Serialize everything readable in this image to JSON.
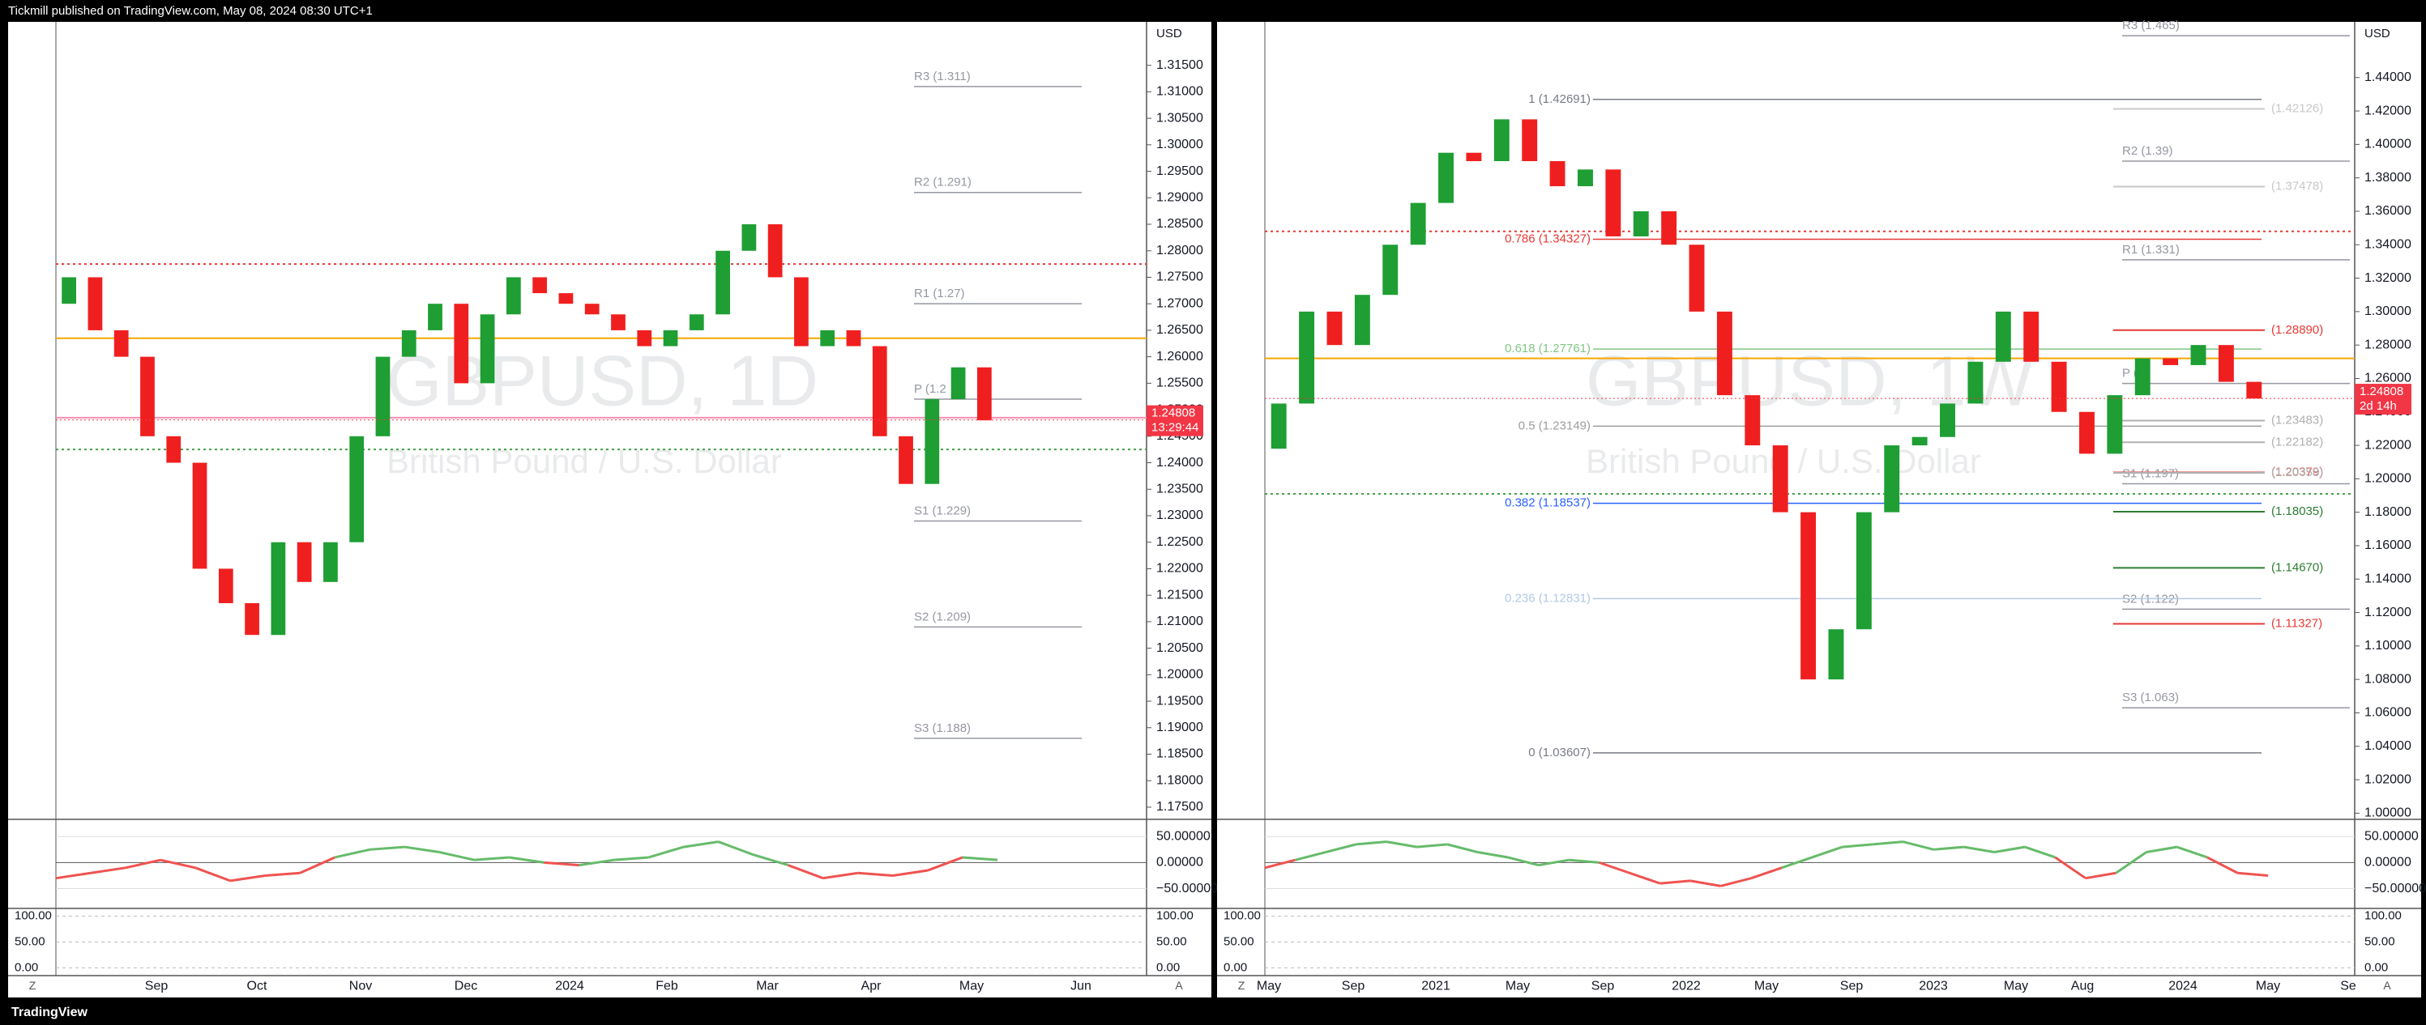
{
  "header": "Tickmill published on TradingView.com, May 08, 2024 08:30 UTC+1",
  "footer": "TradingView",
  "chart_data": [
    {
      "type": "candlestick",
      "title": "GBPUSD, 1D",
      "subtitle": "British Pound / U.S. Dollar",
      "currency": "USD",
      "up_color": "#1e9e33",
      "down_color": "#f01f1f",
      "values": [
        1.27,
        1.275,
        1.265,
        1.26,
        1.245,
        1.24,
        1.22,
        1.2135,
        1.2075,
        1.225,
        1.2175,
        1.225,
        1.245,
        1.26,
        1.265,
        1.27,
        1.255,
        1.268,
        1.275,
        1.272,
        1.27,
        1.268,
        1.265,
        1.262,
        1.265,
        1.268,
        1.28,
        1.285,
        1.275,
        1.262,
        1.265,
        1.262,
        1.245,
        1.236,
        1.252,
        1.258,
        1.248
      ],
      "ylim": [
        1.1727,
        1.3232
      ],
      "yticks": [
        {
          "value": 1.175,
          "label": "1.17500"
        },
        {
          "value": 1.18,
          "label": "1.18000"
        },
        {
          "value": 1.185,
          "label": "1.18500"
        },
        {
          "value": 1.19,
          "label": "1.19000"
        },
        {
          "value": 1.195,
          "label": "1.19500"
        },
        {
          "value": 1.2,
          "label": "1.20000"
        },
        {
          "value": 1.205,
          "label": "1.20500"
        },
        {
          "value": 1.21,
          "label": "1.21000"
        },
        {
          "value": 1.215,
          "label": "1.21500"
        },
        {
          "value": 1.22,
          "label": "1.22000"
        },
        {
          "value": 1.225,
          "label": "1.22500"
        },
        {
          "value": 1.23,
          "label": "1.23000"
        },
        {
          "value": 1.235,
          "label": "1.23500"
        },
        {
          "value": 1.24,
          "label": "1.24000"
        },
        {
          "value": 1.245,
          "label": "1.24500"
        },
        {
          "value": 1.25,
          "label": "1.25000"
        },
        {
          "value": 1.255,
          "label": "1.25500"
        },
        {
          "value": 1.26,
          "label": "1.26000"
        },
        {
          "value": 1.265,
          "label": "1.26500"
        },
        {
          "value": 1.27,
          "label": "1.27000"
        },
        {
          "value": 1.275,
          "label": "1.27500"
        },
        {
          "value": 1.28,
          "label": "1.28000"
        },
        {
          "value": 1.285,
          "label": "1.28500"
        },
        {
          "value": 1.29,
          "label": "1.29000"
        },
        {
          "value": 1.295,
          "label": "1.29500"
        },
        {
          "value": 1.3,
          "label": "1.30000"
        },
        {
          "value": 1.305,
          "label": "1.30500"
        },
        {
          "value": 1.31,
          "label": "1.31000"
        },
        {
          "value": 1.315,
          "label": "1.31500"
        }
      ],
      "x_labels": [
        "Sep",
        "Oct",
        "Nov",
        "Dec",
        "2024",
        "Feb",
        "Mar",
        "Apr",
        "May",
        "Jun"
      ],
      "last_price": 1.24808,
      "countdown": "13:29:44",
      "levels": [
        {
          "value": 1.2635,
          "color": "#f7a600",
          "style": "solid"
        },
        {
          "value": 1.2775,
          "color": "#e53935",
          "style": "dotted"
        },
        {
          "value": 1.2425,
          "color": "#43a047",
          "style": "dotted"
        },
        {
          "value": 1.2485,
          "color": "#f48fb1",
          "style": "solid"
        }
      ],
      "pivots": [
        {
          "value": 1.311,
          "label": "R3 (1.311)"
        },
        {
          "value": 1.291,
          "label": "R2 (1.291)"
        },
        {
          "value": 1.27,
          "label": "R1 (1.27)"
        },
        {
          "value": 1.252,
          "label": "P (1.2"
        },
        {
          "value": 1.229,
          "label": "S1 (1.229)"
        },
        {
          "value": 1.209,
          "label": "S2 (1.209)"
        },
        {
          "value": 1.188,
          "label": "S3 (1.188)"
        }
      ],
      "oscillator": {
        "ylim": [
          -88,
          83
        ],
        "yticks": [
          {
            "value": 50,
            "label": "50.00000"
          },
          {
            "value": 0,
            "label": "0.00000"
          },
          {
            "value": -50,
            "label": "−50.00000"
          }
        ],
        "values": [
          -30,
          -20,
          -10,
          5,
          -10,
          -35,
          -25,
          -20,
          10,
          25,
          30,
          20,
          5,
          10,
          0,
          -5,
          5,
          10,
          30,
          40,
          15,
          -5,
          -30,
          -20,
          -25,
          -15,
          10,
          5
        ]
      },
      "stochastic": {
        "ylim": [
          -15,
          115
        ],
        "yticks": [
          {
            "value": 100,
            "label": "100.00"
          },
          {
            "value": 50,
            "label": "50.00"
          },
          {
            "value": 0,
            "label": "0.00"
          }
        ]
      },
      "corner_buttons": [
        "Z",
        "A"
      ]
    },
    {
      "type": "candlestick",
      "title": "GBPUSD, 1W",
      "subtitle": "British Pound / U.S. Dollar",
      "currency": "USD",
      "up_color": "#1e9e33",
      "down_color": "#f01f1f",
      "values": [
        1.218,
        1.245,
        1.3,
        1.28,
        1.31,
        1.34,
        1.365,
        1.395,
        1.39,
        1.415,
        1.39,
        1.375,
        1.385,
        1.345,
        1.36,
        1.34,
        1.3,
        1.25,
        1.22,
        1.18,
        1.08,
        1.11,
        1.18,
        1.22,
        1.225,
        1.245,
        1.27,
        1.3,
        1.27,
        1.24,
        1.215,
        1.25,
        1.272,
        1.268,
        1.28,
        1.258,
        1.248
      ],
      "ylim": [
        0.9963,
        1.4733
      ],
      "yticks": [
        {
          "value": 1.0,
          "label": "1.00000"
        },
        {
          "value": 1.02,
          "label": "1.02000"
        },
        {
          "value": 1.04,
          "label": "1.04000"
        },
        {
          "value": 1.06,
          "label": "1.06000"
        },
        {
          "value": 1.08,
          "label": "1.08000"
        },
        {
          "value": 1.1,
          "label": "1.10000"
        },
        {
          "value": 1.12,
          "label": "1.12000"
        },
        {
          "value": 1.14,
          "label": "1.14000"
        },
        {
          "value": 1.16,
          "label": "1.16000"
        },
        {
          "value": 1.18,
          "label": "1.18000"
        },
        {
          "value": 1.2,
          "label": "1.20000"
        },
        {
          "value": 1.22,
          "label": "1.22000"
        },
        {
          "value": 1.24,
          "label": "1.24000"
        },
        {
          "value": 1.26,
          "label": "1.26000"
        },
        {
          "value": 1.28,
          "label": "1.28000"
        },
        {
          "value": 1.3,
          "label": "1.30000"
        },
        {
          "value": 1.32,
          "label": "1.32000"
        },
        {
          "value": 1.34,
          "label": "1.34000"
        },
        {
          "value": 1.36,
          "label": "1.36000"
        },
        {
          "value": 1.38,
          "label": "1.38000"
        },
        {
          "value": 1.4,
          "label": "1.40000"
        },
        {
          "value": 1.42,
          "label": "1.42000"
        },
        {
          "value": 1.44,
          "label": "1.44000"
        }
      ],
      "x_labels": [
        "May",
        "Sep",
        "2021",
        "May",
        "Sep",
        "2022",
        "May",
        "Sep",
        "2023",
        "May",
        "Aug",
        "2024",
        "May",
        "Se"
      ],
      "last_price": 1.24808,
      "countdown": "2d 14h",
      "levels": [
        {
          "value": 1.272,
          "color": "#f7a600",
          "style": "solid"
        },
        {
          "value": 1.348,
          "color": "#e53935",
          "style": "dotted"
        },
        {
          "value": 1.191,
          "color": "#43a047",
          "style": "dotted"
        }
      ],
      "pivots": [
        {
          "value": 1.465,
          "label": "R3 (1.465)"
        },
        {
          "value": 1.39,
          "label": "R2 (1.39)"
        },
        {
          "value": 1.331,
          "label": "R1 (1.331)"
        },
        {
          "value": 1.257,
          "label": "P (1"
        },
        {
          "value": 1.197,
          "label": "S1 (1.197)"
        },
        {
          "value": 1.122,
          "label": "S2 (1.122)"
        },
        {
          "value": 1.063,
          "label": "S3 (1.063)"
        }
      ],
      "fib_levels": [
        {
          "value": 1.42691,
          "label": "1 (1.42691)",
          "color": "#787b86"
        },
        {
          "value": 1.34327,
          "label": "0.786 (1.34327)",
          "color": "#e53935"
        },
        {
          "value": 1.27761,
          "label": "0.618 (1.27761)",
          "color": "#81c784"
        },
        {
          "value": 1.23149,
          "label": "0.5 (1.23149)",
          "color": "#9e9e9e"
        },
        {
          "value": 1.18537,
          "label": "0.382 (1.18537)",
          "color": "#2962ff"
        },
        {
          "value": 1.12831,
          "label": "0.236 (1.12831)",
          "color": "#b3c7e6"
        },
        {
          "value": 1.03607,
          "label": "0 (1.03607)",
          "color": "#787b86"
        }
      ],
      "right_levels": [
        {
          "value": 1.42126,
          "label": "(1.42126)",
          "color": "#c8c8c8"
        },
        {
          "value": 1.37478,
          "label": "(1.37478)",
          "color": "#c8c8c8"
        },
        {
          "value": 1.2889,
          "label": "(1.28890)",
          "color": "#e53935"
        },
        {
          "value": 1.23483,
          "label": "(1.23483)",
          "color": "#b0b0b0"
        },
        {
          "value": 1.22182,
          "label": "(1.22182)",
          "color": "#b0b0b0"
        },
        {
          "value": 1.20379,
          "label": "(1.20379)",
          "color": "#e53935"
        },
        {
          "value": 1.20358,
          "label": "(1.20358)",
          "color": "#b0b0b0"
        },
        {
          "value": 1.18035,
          "label": "(1.18035)",
          "color": "#2e7d32"
        },
        {
          "value": 1.1467,
          "label": "(1.14670)",
          "color": "#2e7d32"
        },
        {
          "value": 1.11327,
          "label": "(1.11327)",
          "color": "#e53935"
        }
      ],
      "oscillator": {
        "ylim": [
          -88,
          83
        ],
        "yticks": [
          {
            "value": 50,
            "label": "50.00000"
          },
          {
            "value": 0,
            "label": "0.00000"
          },
          {
            "value": -50,
            "label": "−50.00000"
          }
        ],
        "values": [
          -10,
          5,
          20,
          35,
          40,
          30,
          35,
          20,
          10,
          -5,
          5,
          0,
          -20,
          -40,
          -35,
          -45,
          -30,
          -10,
          10,
          30,
          35,
          40,
          25,
          30,
          20,
          30,
          10,
          -30,
          -20,
          20,
          30,
          10,
          -20,
          -25
        ]
      },
      "stochastic": {
        "ylim": [
          -15,
          115
        ],
        "yticks": [
          {
            "value": 100,
            "label": "100.00"
          },
          {
            "value": 50,
            "label": "50.00"
          },
          {
            "value": 0,
            "label": "0.00"
          }
        ]
      },
      "corner_buttons": [
        "Z",
        "A"
      ]
    }
  ]
}
